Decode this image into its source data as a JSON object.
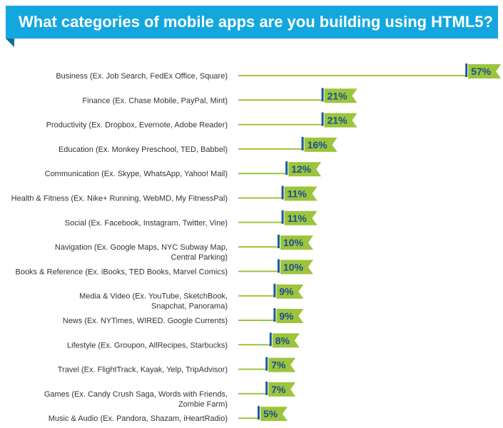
{
  "header": {
    "title": "What categories of mobile apps are you building using HTML5?"
  },
  "colors": {
    "banner": "#14a7df",
    "banner_fold": "#0a6f96",
    "line": "#9cc43c",
    "tag_fill": "#9cc43c",
    "marker": "#1a5a9c",
    "value_text": "#1a4f94"
  },
  "chart_data": {
    "type": "bar",
    "title": "What categories of mobile apps are you building using HTML5?",
    "xlabel": "",
    "ylabel": "",
    "grid": false,
    "legend": "none",
    "unit": "%",
    "categories": [
      [
        "Business (Ex. Job Search, FedEx Office, Square)"
      ],
      [
        "Finance (Ex. Chase Mobile, PayPal, Mint)"
      ],
      [
        "Productivity (Ex. Dropbox, Evernote, Adobe Reader)"
      ],
      [
        "Education (Ex. Monkey Preschool, TED, Babbel)"
      ],
      [
        "Communication (Ex. Skype, WhatsApp, Yahoo! Mail)"
      ],
      [
        "Health & Fitness (Ex. Nike+ Running, WebMD, My FitnessPal)"
      ],
      [
        "Social (Ex. Facebook, Instagram, Twitter, Vine)"
      ],
      [
        "Navigation (Ex. Google Maps, NYC Subway Map,",
        "Central Parking)"
      ],
      [
        "Books & Reference (Ex. iBooks, TED Books, Marvel Comics)"
      ],
      [
        "Media & Video (Ex. YouTube, SketchBook,",
        "Snapchat, Panorama)"
      ],
      [
        "News (Ex. NYTimes,  WIRED. Google Currents)"
      ],
      [
        "Lifestyle (Ex. Groupon, AllRecipes, Starbucks)"
      ],
      [
        "Travel (Ex. FlightTrack, Kayak, Yelp, TripAdvisor)"
      ],
      [
        "Games (Ex. Candy Crush Saga, Words with Friends,",
        "Zombie Farm)"
      ],
      [
        "Music & Audio (Ex. Pandora, Shazam, iHeartRadio)"
      ]
    ],
    "values": [
      57,
      21,
      21,
      16,
      12,
      11,
      11,
      10,
      10,
      9,
      9,
      8,
      7,
      7,
      5
    ],
    "value_labels": [
      "57%",
      "21%",
      "21%",
      "16%",
      "12%",
      "11%",
      "11%",
      "10%",
      "10%",
      "9%",
      "9%",
      "8%",
      "7%",
      "7%",
      "5%"
    ]
  }
}
